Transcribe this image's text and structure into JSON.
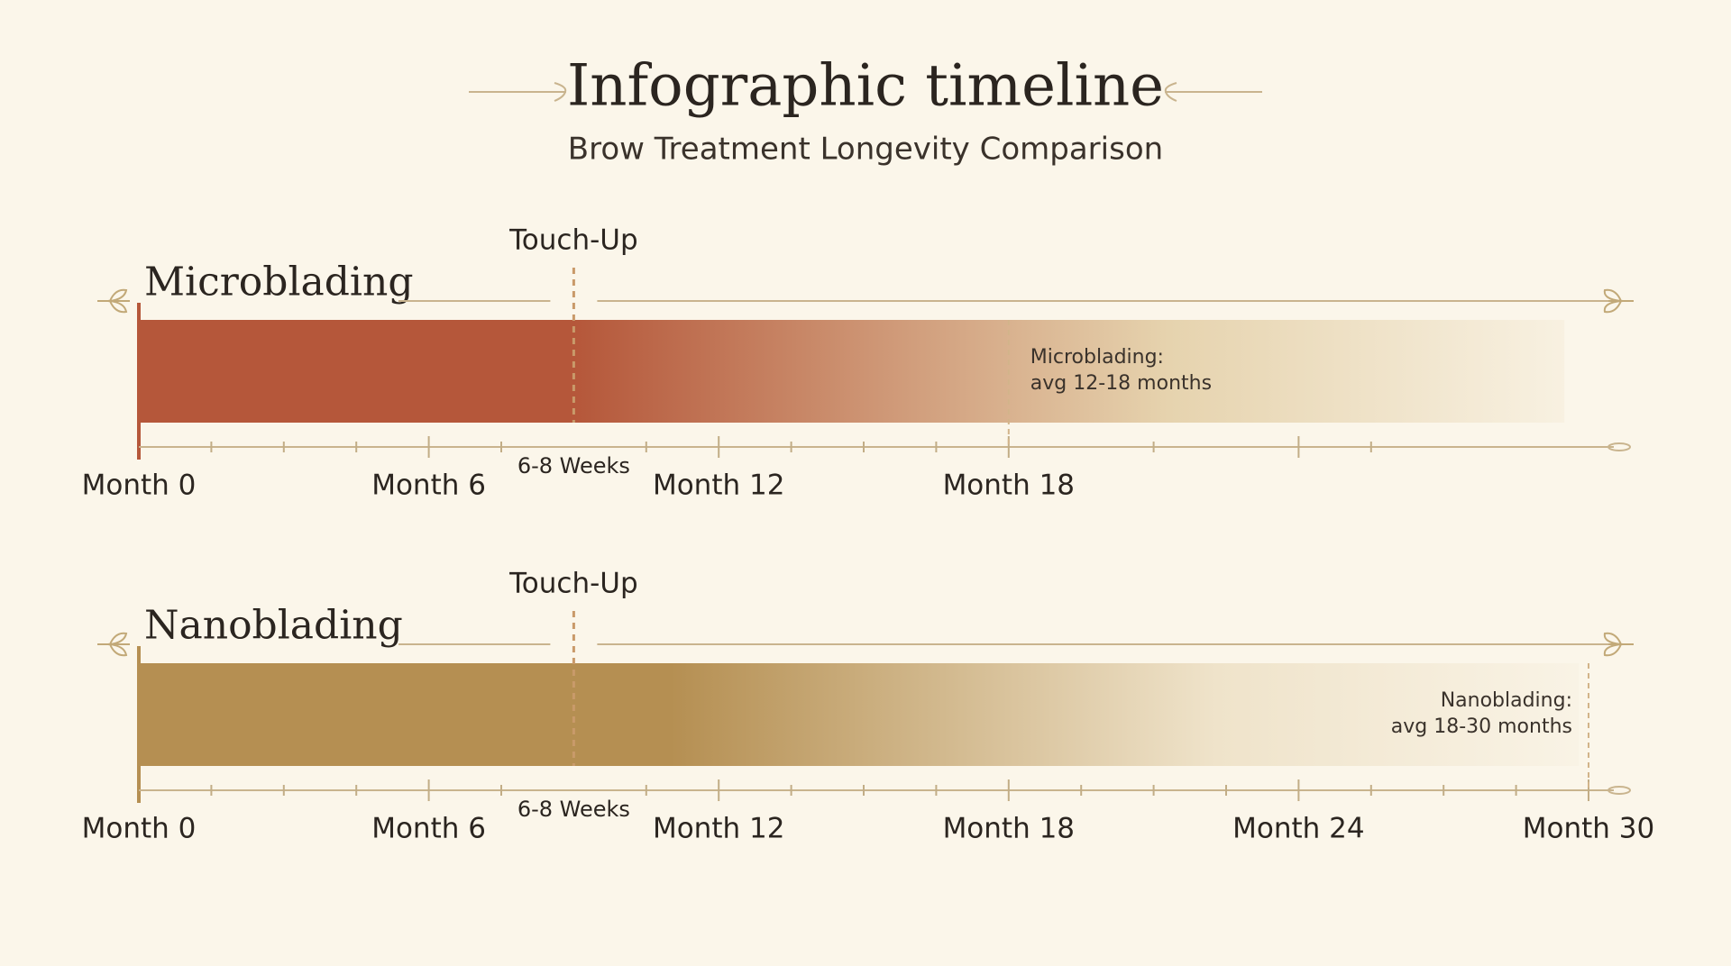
{
  "header": {
    "title": "Infographic timeline",
    "subtitle": "Brow Treatment Longevity Comparison"
  },
  "chart_data": [
    {
      "type": "timeline",
      "title": "Microblading",
      "color": "#b5573a",
      "fade_color": "#e6d3ae",
      "range": [
        0,
        29.5
      ],
      "solid_until": 9,
      "xlim": [
        0,
        30
      ],
      "xticks": [
        {
          "value": 0,
          "label": "Month 0"
        },
        {
          "value": 6,
          "label": "Month 6"
        },
        {
          "value": 12,
          "label": "Month 12"
        },
        {
          "value": 18,
          "label": "Month 18"
        },
        24
      ],
      "minor_xticks": [
        1.5,
        3,
        4.5,
        7.5,
        10.5,
        13.5,
        15,
        16.5,
        21,
        25.5
      ],
      "touch_up": {
        "value": 9,
        "label": "Touch-Up",
        "sublabel": "6-8 Weeks"
      },
      "marker": {
        "value": 18,
        "lines": [
          "Microblading:",
          "avg 12-18 months"
        ]
      }
    },
    {
      "type": "timeline",
      "title": "Nanoblading",
      "color": "#b58f52",
      "fade_color": "#efe3ca",
      "range": [
        0,
        29.8
      ],
      "solid_until": 11,
      "xlim": [
        0,
        30
      ],
      "xticks": [
        {
          "value": 0,
          "label": "Month 0"
        },
        {
          "value": 6,
          "label": "Month 6"
        },
        {
          "value": 12,
          "label": "Month 12"
        },
        {
          "value": 18,
          "label": "Month 18"
        },
        {
          "value": 24,
          "label": "Month 24"
        },
        {
          "value": 30,
          "label": "Month 30"
        }
      ],
      "minor_xticks": [
        1.5,
        3,
        4.5,
        7.5,
        10.5,
        13.5,
        15,
        16.5,
        19.5,
        21,
        22.5,
        25.5,
        27,
        28.5
      ],
      "touch_up": {
        "value": 9,
        "label": "Touch-Up",
        "sublabel": "6-8 Weeks"
      },
      "marker": {
        "value": 30,
        "lines": [
          "Nanoblading:",
          "avg 18-30 months"
        ]
      }
    }
  ]
}
